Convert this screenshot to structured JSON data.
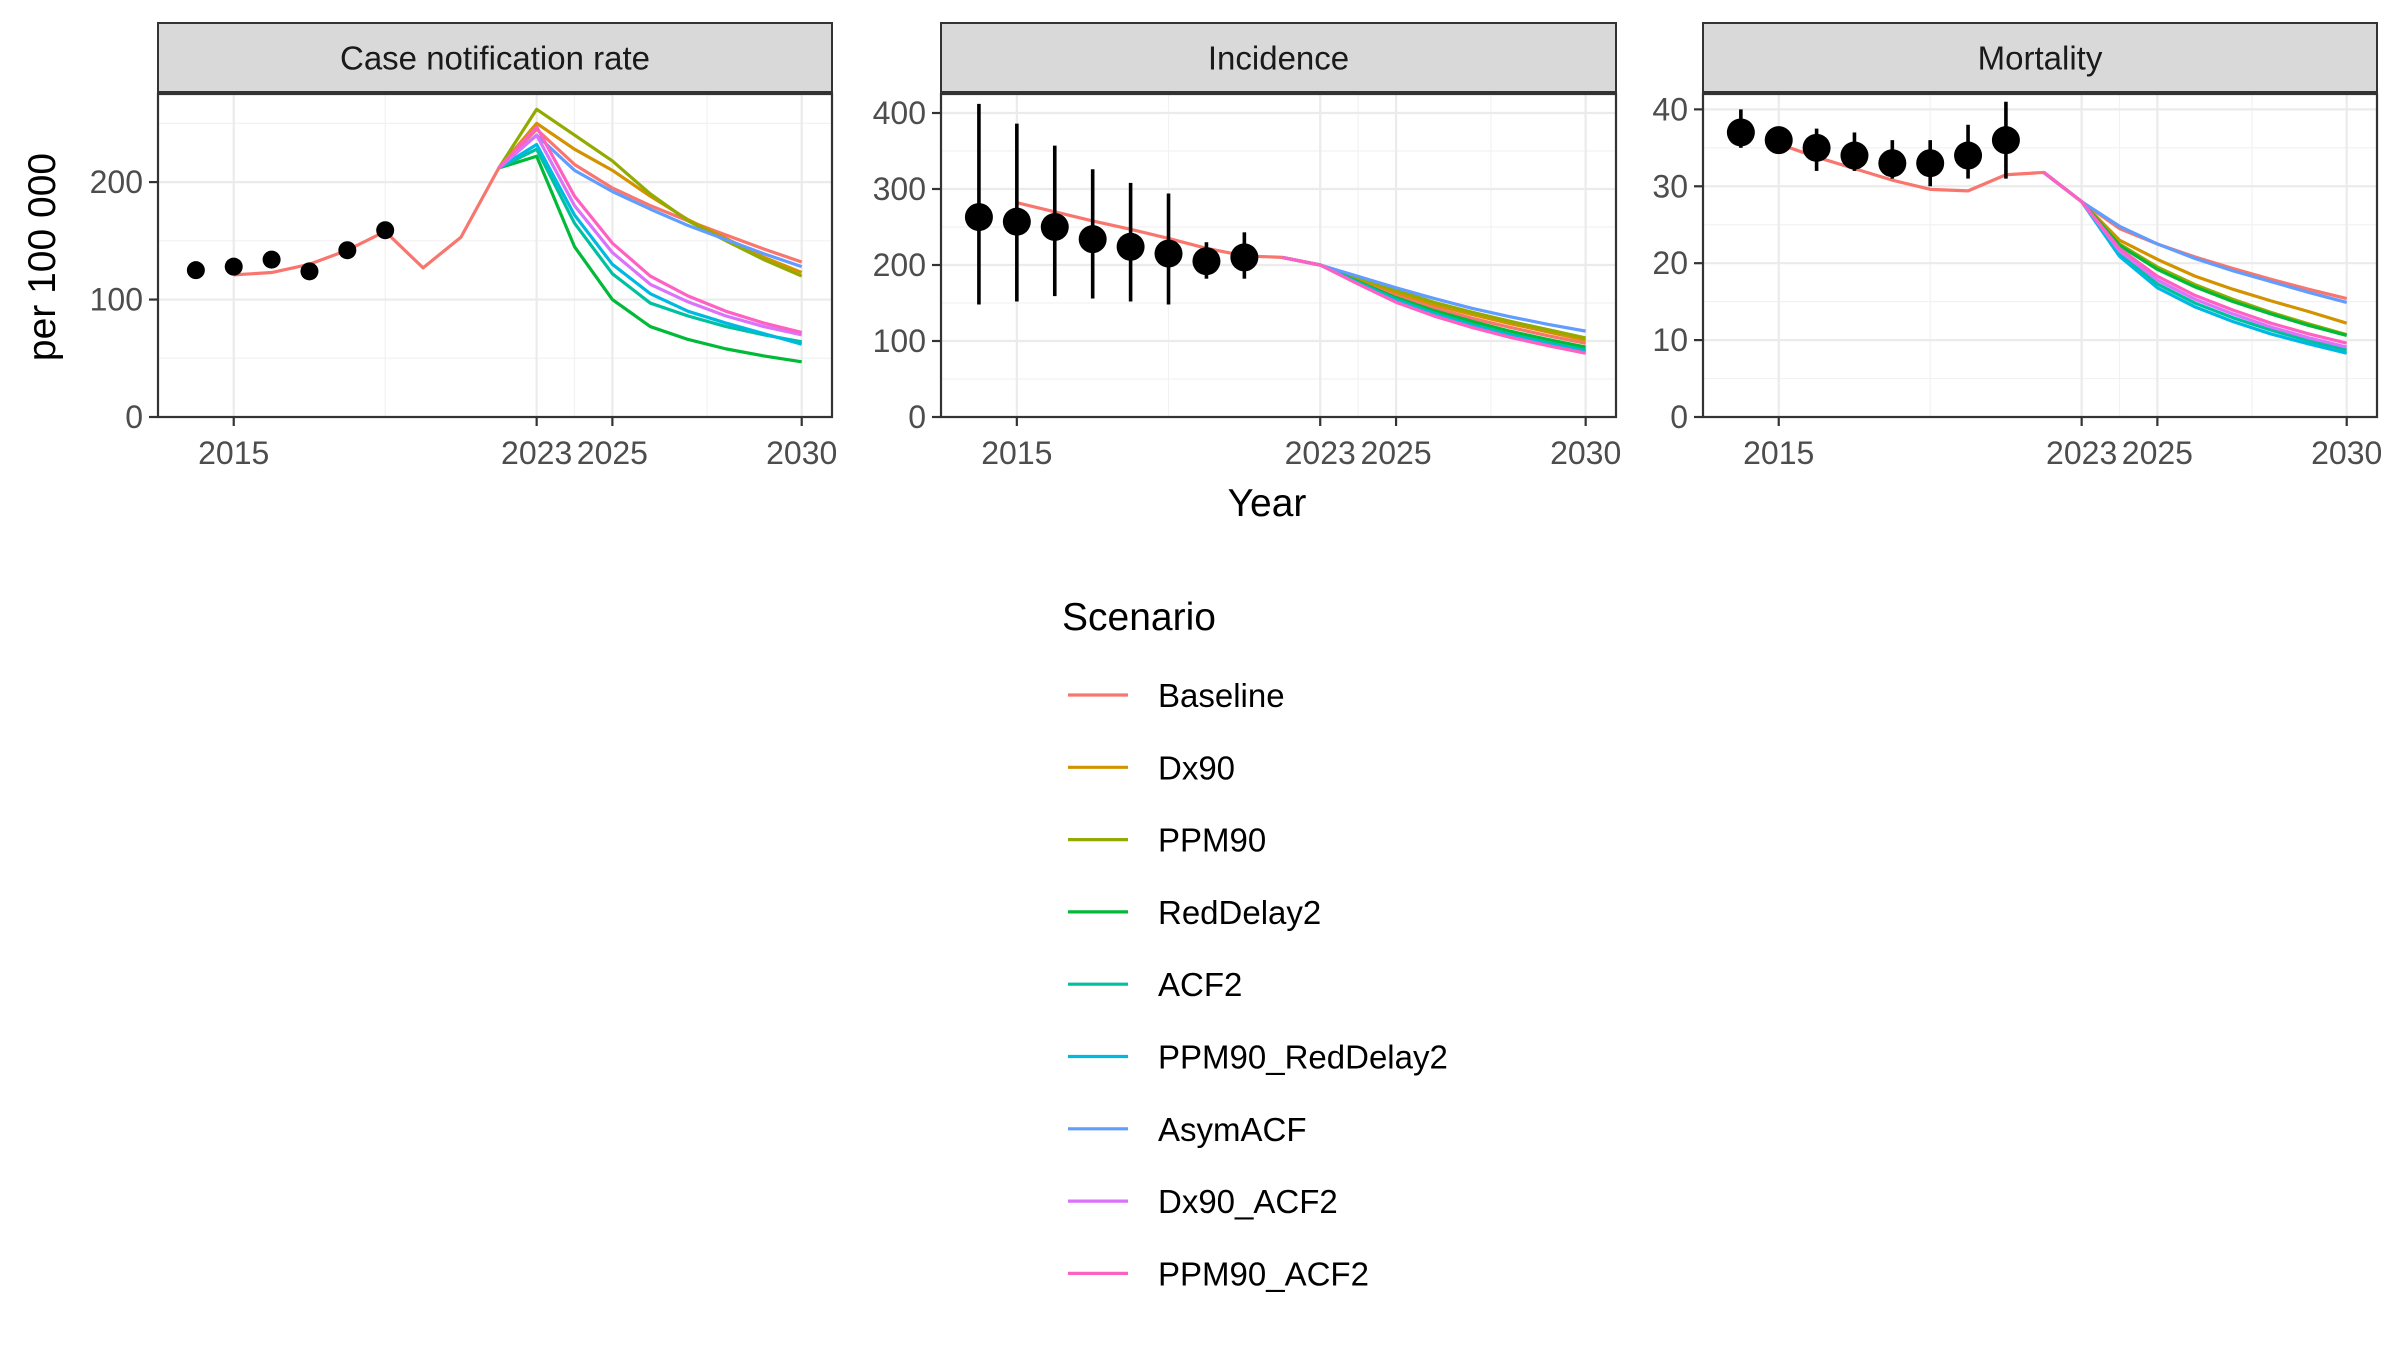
{
  "chart_data": {
    "type": "line",
    "ylabel": "per 100 000",
    "xlabel": "Year",
    "x_ticks": [
      2015,
      2023,
      2025,
      2030
    ],
    "grid": true,
    "legend": {
      "title": "Scenario",
      "position": "bottom"
    },
    "colors": {
      "Baseline": "#F8766D",
      "Dx90": "#D39200",
      "PPM90": "#93AA00",
      "RedDelay2": "#00BA38",
      "ACF2": "#00C19F",
      "PPM90_RedDelay2": "#00B9E3",
      "AsymACF": "#619CFF",
      "Dx90_ACF2": "#DB72FB",
      "PPM90_ACF2": "#FF61C3"
    },
    "scenarios": [
      "Baseline",
      "Dx90",
      "PPM90",
      "RedDelay2",
      "ACF2",
      "PPM90_RedDelay2",
      "AsymACF",
      "Dx90_ACF2",
      "PPM90_ACF2"
    ],
    "panels": [
      {
        "title": "Case notification rate",
        "xlim": [
          2013,
          2030.8
        ],
        "ylim": [
          0,
          275
        ],
        "y_ticks": [
          0,
          100,
          200
        ],
        "baseline": {
          "x": [
            2015,
            2016,
            2017,
            2018,
            2019,
            2020,
            2021,
            2022,
            2023
          ],
          "y": [
            121,
            123,
            130,
            142,
            158,
            127,
            153,
            212,
            245
          ]
        },
        "projections": {
          "x": [
            2022,
            2023,
            2024,
            2025,
            2026,
            2027,
            2028,
            2029,
            2030
          ],
          "series": [
            {
              "name": "Baseline",
              "values": [
                212,
                245,
                215,
                195,
                180,
                167,
                155,
                143,
                132
              ]
            },
            {
              "name": "Dx90",
              "values": [
                212,
                250,
                228,
                210,
                188,
                168,
                152,
                136,
                123
              ]
            },
            {
              "name": "PPM90",
              "values": [
                212,
                262,
                240,
                218,
                190,
                167,
                150,
                134,
                120
              ]
            },
            {
              "name": "RedDelay2",
              "values": [
                212,
                222,
                145,
                100,
                77,
                66,
                58,
                52,
                47
              ]
            },
            {
              "name": "ACF2",
              "values": [
                212,
                228,
                165,
                122,
                97,
                86,
                77,
                70,
                64
              ]
            },
            {
              "name": "PPM90_RedDelay2",
              "values": [
                212,
                232,
                172,
                130,
                105,
                90,
                80,
                71,
                62
              ]
            },
            {
              "name": "AsymACF",
              "values": [
                212,
                240,
                210,
                192,
                177,
                163,
                151,
                139,
                128
              ]
            },
            {
              "name": "Dx90_ACF2",
              "values": [
                212,
                240,
                180,
                140,
                113,
                98,
                86,
                77,
                70
              ]
            },
            {
              "name": "PPM90_ACF2",
              "values": [
                212,
                247,
                188,
                148,
                120,
                103,
                90,
                80,
                72
              ]
            }
          ]
        },
        "observed": {
          "x": [
            2014,
            2015,
            2016,
            2017,
            2018,
            2019
          ],
          "y": [
            125,
            128,
            134,
            124,
            142,
            159
          ]
        }
      },
      {
        "title": "Incidence",
        "xlim": [
          2013,
          2030.8
        ],
        "ylim": [
          0,
          425
        ],
        "y_ticks": [
          0,
          100,
          200,
          300,
          400
        ],
        "baseline": {
          "x": [
            2015,
            2016,
            2017,
            2018,
            2019,
            2020,
            2021,
            2022,
            2023
          ],
          "y": [
            282,
            270,
            258,
            247,
            235,
            222,
            212,
            210,
            200
          ]
        },
        "projections": {
          "x": [
            2022,
            2023,
            2024,
            2025,
            2026,
            2027,
            2028,
            2029,
            2030
          ],
          "series": [
            {
              "name": "Baseline",
              "values": [
                210,
                200,
                180,
                160,
                144,
                130,
                118,
                107,
                97
              ]
            },
            {
              "name": "Dx90",
              "values": [
                210,
                200,
                182,
                164,
                148,
                135,
                123,
                112,
                101
              ]
            },
            {
              "name": "PPM90",
              "values": [
                210,
                200,
                183,
                167,
                151,
                138,
                126,
                115,
                104
              ]
            },
            {
              "name": "RedDelay2",
              "values": [
                210,
                200,
                178,
                157,
                140,
                126,
                113,
                102,
                92
              ]
            },
            {
              "name": "ACF2",
              "values": [
                210,
                200,
                177,
                155,
                137,
                122,
                109,
                98,
                88
              ]
            },
            {
              "name": "PPM90_RedDelay2",
              "values": [
                210,
                200,
                176,
                153,
                135,
                120,
                107,
                96,
                86
              ]
            },
            {
              "name": "AsymACF",
              "values": [
                210,
                200,
                185,
                170,
                156,
                143,
                132,
                122,
                113
              ]
            },
            {
              "name": "Dx90_ACF2",
              "values": [
                210,
                200,
                175,
                151,
                133,
                118,
                105,
                94,
                84
              ]
            },
            {
              "name": "PPM90_ACF2",
              "values": [
                210,
                200,
                175,
                151,
                133,
                118,
                105,
                94,
                84
              ]
            }
          ]
        },
        "observed": {
          "x": [
            2014,
            2015,
            2016,
            2017,
            2018,
            2019,
            2020,
            2021
          ],
          "y": [
            263,
            257,
            250,
            234,
            224,
            215,
            205,
            210
          ],
          "lo": [
            148,
            152,
            159,
            156,
            152,
            148,
            182,
            182
          ],
          "hi": [
            412,
            386,
            357,
            326,
            308,
            294,
            230,
            243
          ]
        }
      },
      {
        "title": "Mortality",
        "xlim": [
          2013,
          2030.8
        ],
        "ylim": [
          0,
          42
        ],
        "y_ticks": [
          0,
          10,
          20,
          30,
          40
        ],
        "baseline": {
          "x": [
            2015,
            2016,
            2017,
            2018,
            2019,
            2020,
            2021,
            2022,
            2023
          ],
          "y": [
            35.5,
            33.8,
            32.3,
            30.8,
            29.6,
            29.4,
            31.5,
            31.8,
            28.0
          ]
        },
        "projections": {
          "x": [
            2022,
            2023,
            2024,
            2025,
            2026,
            2027,
            2028,
            2029,
            2030
          ],
          "series": [
            {
              "name": "Baseline",
              "values": [
                31.8,
                28.0,
                24.5,
                22.5,
                20.8,
                19.3,
                17.9,
                16.6,
                15.4
              ]
            },
            {
              "name": "Dx90",
              "values": [
                31.8,
                28.0,
                23.0,
                20.5,
                18.3,
                16.6,
                15.1,
                13.7,
                12.2
              ]
            },
            {
              "name": "PPM90",
              "values": [
                31.8,
                28.0,
                22.5,
                19.5,
                17.2,
                15.3,
                13.6,
                12.1,
                10.7
              ]
            },
            {
              "name": "RedDelay2",
              "values": [
                31.8,
                28.0,
                22.3,
                19.2,
                16.9,
                15.0,
                13.4,
                11.9,
                10.6
              ]
            },
            {
              "name": "ACF2",
              "values": [
                31.8,
                28.0,
                21.2,
                17.3,
                14.8,
                12.9,
                11.3,
                9.9,
                8.7
              ]
            },
            {
              "name": "PPM90_RedDelay2",
              "values": [
                31.8,
                28.0,
                20.9,
                16.8,
                14.3,
                12.4,
                10.8,
                9.5,
                8.3
              ]
            },
            {
              "name": "AsymACF",
              "values": [
                31.8,
                28.0,
                24.8,
                22.5,
                20.6,
                19.0,
                17.6,
                16.2,
                14.9
              ]
            },
            {
              "name": "Dx90_ACF2",
              "values": [
                31.8,
                28.0,
                21.6,
                17.8,
                15.3,
                13.4,
                11.7,
                10.3,
                9.1
              ]
            },
            {
              "name": "PPM90_ACF2",
              "values": [
                31.8,
                28.0,
                21.9,
                18.3,
                15.8,
                13.9,
                12.2,
                10.8,
                9.6
              ]
            }
          ]
        },
        "observed": {
          "x": [
            2014,
            2015,
            2016,
            2017,
            2018,
            2019,
            2020,
            2021
          ],
          "y": [
            37.0,
            36.0,
            35.0,
            34.0,
            33.0,
            33.0,
            34.0,
            36.0
          ],
          "lo": [
            35.0,
            34.5,
            32.0,
            32.0,
            31.0,
            30.0,
            31.0,
            31.0
          ],
          "hi": [
            40.0,
            37.5,
            37.5,
            37.0,
            36.0,
            36.0,
            38.0,
            41.0
          ]
        }
      }
    ]
  }
}
